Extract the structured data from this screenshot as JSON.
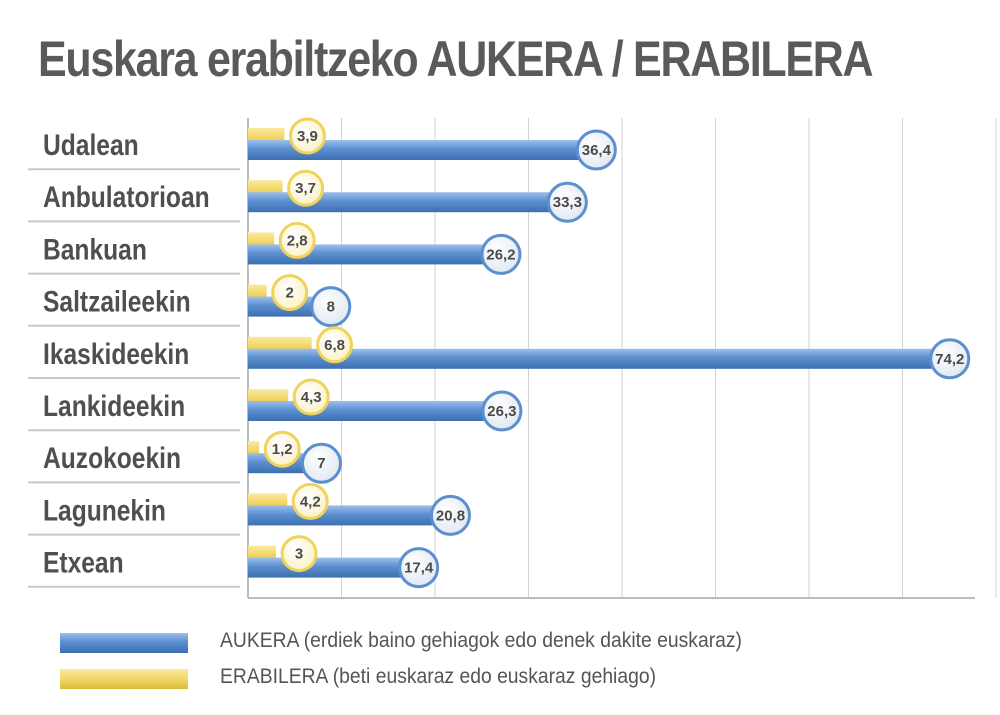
{
  "title": "Euskara erabiltzeko AUKERA / ERABILERA",
  "colors": {
    "aukera": "#5b8fd0",
    "erabilera": "#f2d668",
    "title": "#5a5a5a",
    "grid": "#d0d0d0"
  },
  "chart_data": {
    "type": "bar",
    "orientation": "horizontal",
    "title": "Euskara erabiltzeko AUKERA / ERABILERA",
    "categories": [
      "Udalean",
      "Anbulatorioan",
      "Bankuan",
      "Saltzaileekin",
      "Ikaskideekin",
      "Lankideekin",
      "Auzokoekin",
      "Lagunekin",
      "Etxean"
    ],
    "series": [
      {
        "name": "ERABILERA (beti euskaraz edo euskaraz gehiago)",
        "key": "erabilera",
        "values": [
          3.9,
          3.7,
          2.8,
          2,
          6.8,
          4.3,
          1.2,
          4.2,
          3
        ],
        "labels": [
          "3,9",
          "3,7",
          "2,8",
          "2",
          "6,8",
          "4,3",
          "1,2",
          "4,2",
          "3"
        ]
      },
      {
        "name": "AUKERA (erdiek baino gehiagok edo denek dakite euskaraz)",
        "key": "aukera",
        "values": [
          36.4,
          33.3,
          26.2,
          8,
          74.2,
          26.3,
          7,
          20.8,
          17.4
        ],
        "labels": [
          "36,4",
          "33,3",
          "26,2",
          "8",
          "74,2",
          "26,3",
          "7",
          "20,8",
          "17,4"
        ]
      }
    ],
    "xlim": [
      0,
      80
    ],
    "grid": true,
    "legend": "bottom"
  },
  "legend": [
    {
      "key": "aukera",
      "text": "AUKERA (erdiek baino gehiagok edo denek dakite euskaraz)"
    },
    {
      "key": "erabilera",
      "text": "ERABILERA (beti euskaraz edo euskaraz gehiago)"
    }
  ]
}
